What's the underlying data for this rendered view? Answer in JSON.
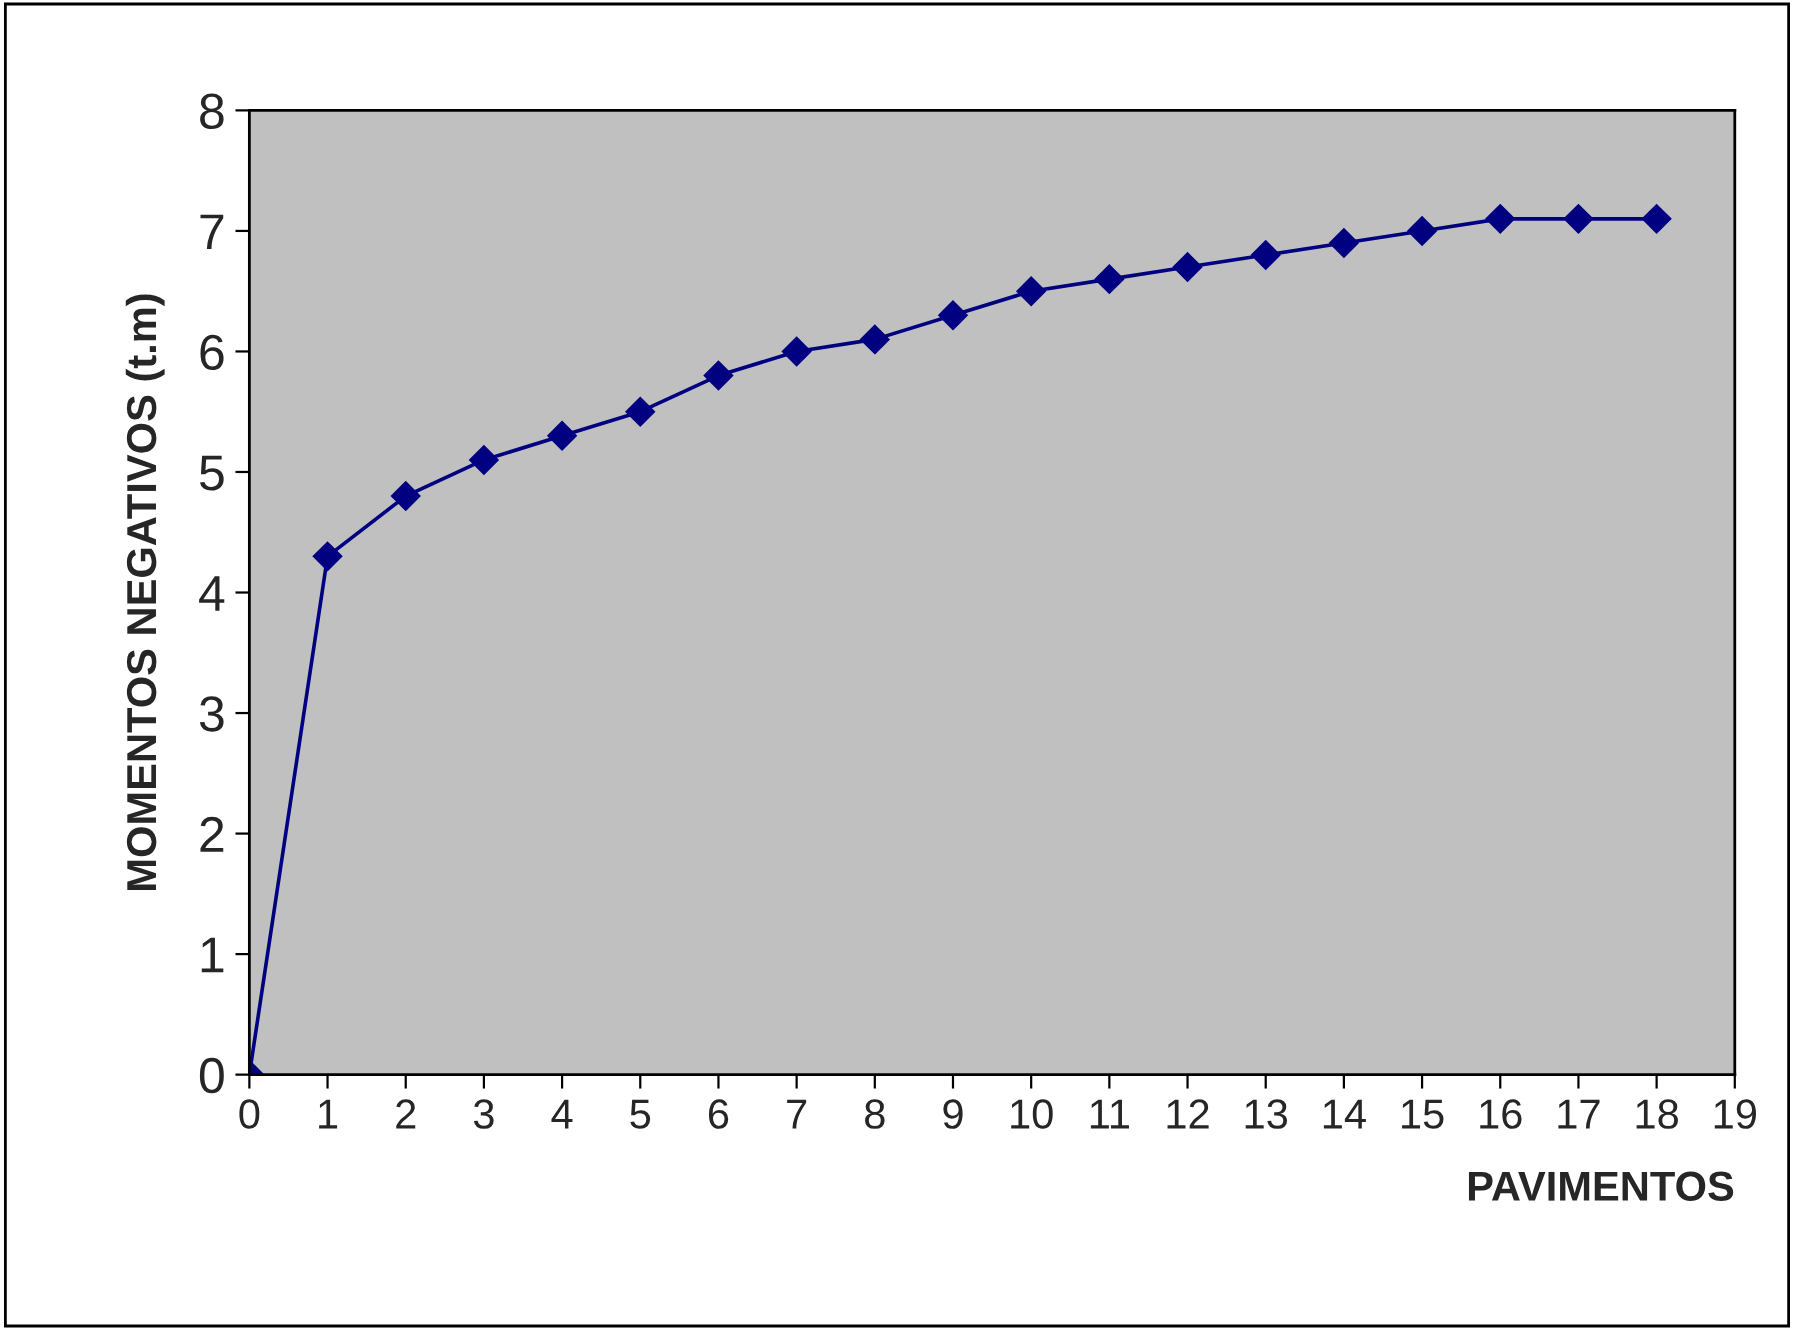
{
  "chart_data": {
    "type": "line",
    "xlabel": "PAVIMENTOS",
    "ylabel": "MOMENTOS NEGATIVOS (t.m)",
    "x": [
      0,
      1,
      2,
      3,
      4,
      5,
      6,
      7,
      8,
      9,
      10,
      11,
      12,
      13,
      14,
      15,
      16,
      17,
      18
    ],
    "series": [
      {
        "color": "#000080",
        "values": [
          0,
          4.3,
          4.8,
          5.1,
          5.3,
          5.5,
          5.8,
          6.0,
          6.1,
          6.3,
          6.5,
          6.6,
          6.7,
          6.8,
          6.9,
          7.0,
          7.1,
          7.1,
          7.1
        ]
      }
    ],
    "xlim": [
      0,
      19
    ],
    "xticks": [
      0,
      1,
      2,
      3,
      4,
      5,
      6,
      7,
      8,
      9,
      10,
      11,
      12,
      13,
      14,
      15,
      16,
      17,
      18,
      19
    ],
    "ylim": [
      0,
      8
    ],
    "yticks": [
      0,
      1,
      2,
      3,
      4,
      5,
      6,
      7,
      8
    ],
    "grid": false,
    "legend": false,
    "marker": "diamond",
    "line_style": "solid"
  }
}
